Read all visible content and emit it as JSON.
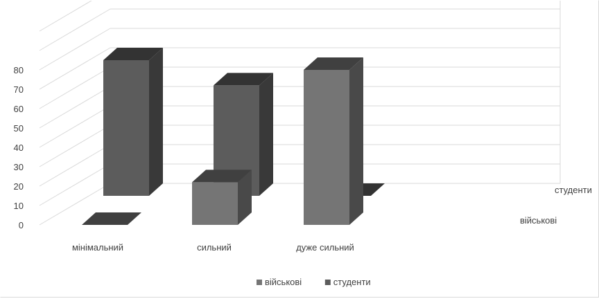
{
  "chart_data": {
    "type": "bar",
    "title": "",
    "xlabel": "",
    "ylabel": "",
    "categories": [
      "мінімальний",
      "сильний",
      "дуже сильний"
    ],
    "series": [
      {
        "name": "військові",
        "values": [
          0,
          22,
          80
        ],
        "color": "#757575"
      },
      {
        "name": "студенти",
        "values": [
          70,
          57,
          0
        ],
        "color": "#5c5c5c"
      }
    ],
    "ylim": [
      0,
      100
    ],
    "yticks": [
      0,
      10,
      20,
      30,
      40,
      50,
      60,
      70,
      80
    ],
    "grid": true,
    "legend_position": "bottom",
    "depth_labels": [
      "студенти",
      "військові"
    ],
    "projection": "3d"
  }
}
